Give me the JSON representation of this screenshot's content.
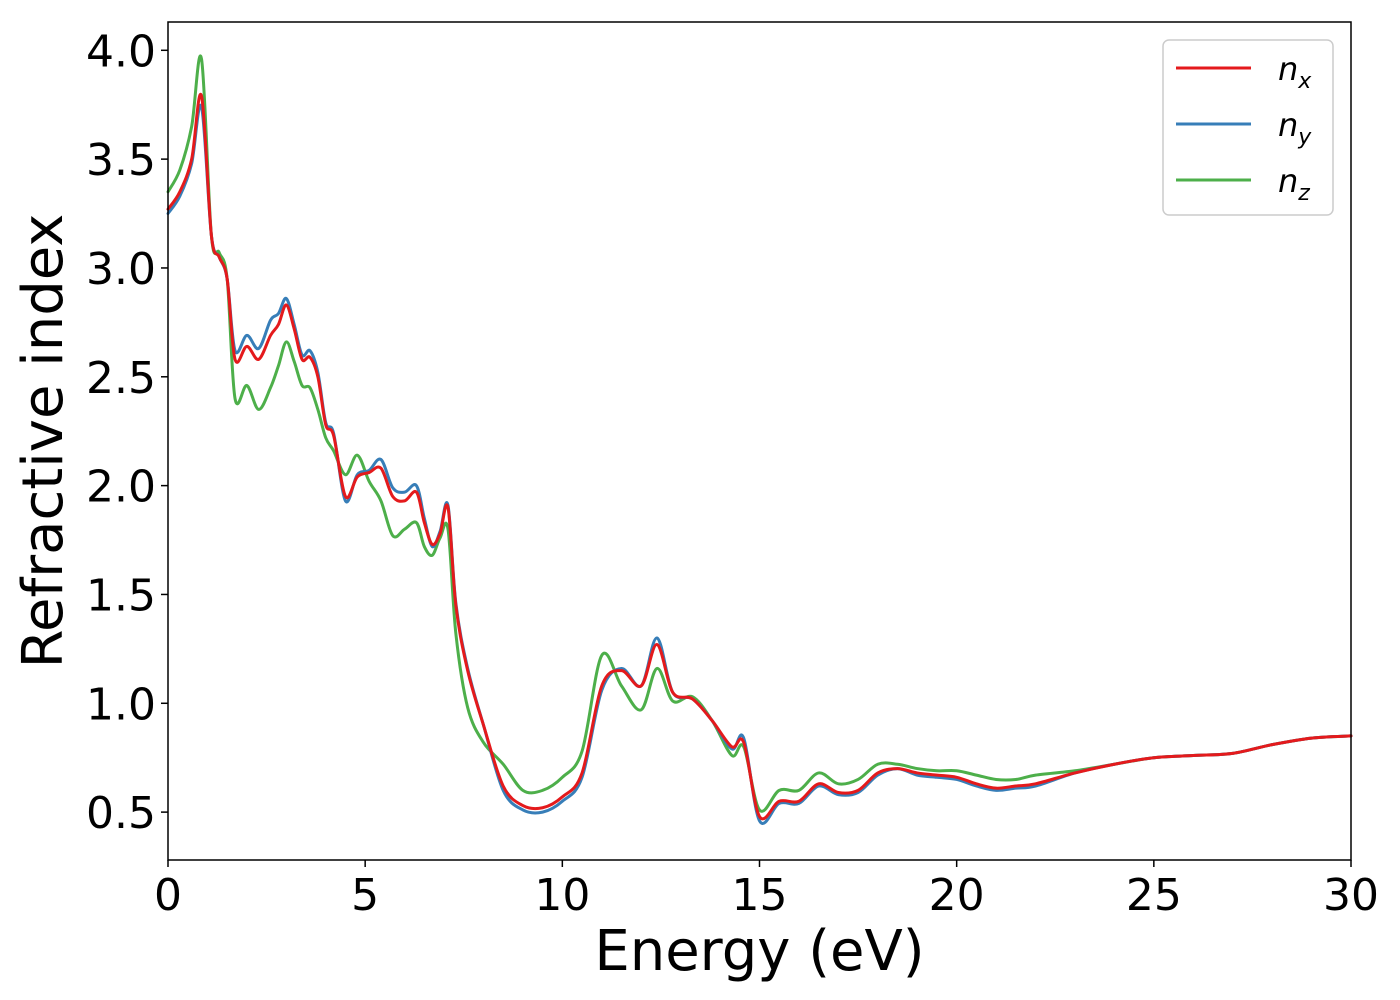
{
  "chart_data": {
    "type": "line",
    "title": "",
    "xlabel": "Energy (eV)",
    "ylabel": "Refractive index",
    "xlim": [
      0,
      30
    ],
    "ylim": [
      0.28,
      4.13
    ],
    "xticks": [
      0,
      5,
      10,
      15,
      20,
      25,
      30
    ],
    "xtick_labels": [
      "0",
      "5",
      "10",
      "15",
      "20",
      "25",
      "30"
    ],
    "yticks": [
      0.5,
      1.0,
      1.5,
      2.0,
      2.5,
      3.0,
      3.5,
      4.0
    ],
    "ytick_labels": [
      "0.5",
      "1.0",
      "1.5",
      "2.0",
      "2.5",
      "3.0",
      "3.5",
      "4.0"
    ],
    "grid": false,
    "legend_position": "top-right",
    "series": [
      {
        "name": "n",
        "subscript": "x",
        "color": "#e41a1c",
        "x": [
          0,
          0.3,
          0.6,
          0.85,
          1.1,
          1.3,
          1.5,
          1.7,
          2.0,
          2.3,
          2.6,
          2.8,
          3.0,
          3.2,
          3.4,
          3.6,
          3.8,
          4.0,
          4.2,
          4.5,
          4.8,
          5.1,
          5.4,
          5.7,
          6.0,
          6.3,
          6.5,
          6.7,
          6.9,
          7.1,
          7.3,
          7.6,
          8.0,
          8.5,
          9.0,
          9.5,
          10.0,
          10.5,
          11.0,
          11.5,
          12.0,
          12.4,
          12.8,
          13.3,
          13.8,
          14.3,
          14.6,
          15.0,
          15.5,
          16.0,
          16.5,
          17.0,
          17.5,
          18.0,
          18.5,
          19.0,
          19.5,
          20.0,
          20.5,
          21.0,
          21.5,
          22.0,
          23.0,
          24.0,
          25.0,
          26.0,
          27.0,
          28.0,
          29.0,
          30.0
        ],
        "y": [
          3.27,
          3.35,
          3.5,
          3.79,
          3.15,
          3.05,
          2.95,
          2.58,
          2.64,
          2.58,
          2.69,
          2.74,
          2.83,
          2.72,
          2.58,
          2.59,
          2.5,
          2.28,
          2.23,
          1.95,
          2.04,
          2.06,
          2.08,
          1.95,
          1.93,
          1.97,
          1.83,
          1.73,
          1.78,
          1.9,
          1.45,
          1.15,
          0.9,
          0.62,
          0.53,
          0.52,
          0.57,
          0.68,
          1.08,
          1.15,
          1.08,
          1.27,
          1.05,
          1.02,
          0.92,
          0.8,
          0.82,
          0.48,
          0.55,
          0.55,
          0.63,
          0.59,
          0.6,
          0.68,
          0.7,
          0.68,
          0.67,
          0.66,
          0.63,
          0.61,
          0.62,
          0.63,
          0.68,
          0.72,
          0.75,
          0.76,
          0.77,
          0.81,
          0.84,
          0.85
        ]
      },
      {
        "name": "n",
        "subscript": "y",
        "color": "#377eb8",
        "x": [
          0,
          0.3,
          0.6,
          0.85,
          1.1,
          1.3,
          1.5,
          1.7,
          2.0,
          2.3,
          2.6,
          2.8,
          3.0,
          3.2,
          3.4,
          3.6,
          3.8,
          4.0,
          4.2,
          4.5,
          4.8,
          5.1,
          5.4,
          5.7,
          6.0,
          6.3,
          6.5,
          6.7,
          6.9,
          7.1,
          7.3,
          7.6,
          8.0,
          8.5,
          9.0,
          9.5,
          10.0,
          10.5,
          11.0,
          11.5,
          12.0,
          12.4,
          12.8,
          13.3,
          13.8,
          14.3,
          14.6,
          15.0,
          15.5,
          16.0,
          16.5,
          17.0,
          17.5,
          18.0,
          18.5,
          19.0,
          19.5,
          20.0,
          20.5,
          21.0,
          21.5,
          22.0,
          23.0,
          24.0,
          25.0,
          26.0,
          27.0,
          28.0,
          29.0,
          30.0
        ],
        "y": [
          3.25,
          3.33,
          3.48,
          3.74,
          3.15,
          3.05,
          2.95,
          2.62,
          2.69,
          2.63,
          2.76,
          2.79,
          2.86,
          2.74,
          2.6,
          2.62,
          2.52,
          2.29,
          2.24,
          1.93,
          2.05,
          2.07,
          2.12,
          1.99,
          1.97,
          2.0,
          1.85,
          1.72,
          1.79,
          1.91,
          1.46,
          1.16,
          0.9,
          0.6,
          0.51,
          0.5,
          0.55,
          0.66,
          1.06,
          1.16,
          1.08,
          1.3,
          1.05,
          1.02,
          0.92,
          0.79,
          0.84,
          0.46,
          0.54,
          0.54,
          0.62,
          0.58,
          0.59,
          0.67,
          0.7,
          0.67,
          0.66,
          0.65,
          0.62,
          0.6,
          0.61,
          0.62,
          0.68,
          0.72,
          0.75,
          0.76,
          0.77,
          0.81,
          0.84,
          0.85
        ]
      },
      {
        "name": "n",
        "subscript": "z",
        "color": "#4daf4a",
        "x": [
          0,
          0.3,
          0.6,
          0.85,
          1.1,
          1.3,
          1.5,
          1.7,
          2.0,
          2.3,
          2.6,
          2.8,
          3.0,
          3.2,
          3.4,
          3.6,
          3.8,
          4.0,
          4.2,
          4.5,
          4.8,
          5.1,
          5.4,
          5.7,
          6.0,
          6.3,
          6.5,
          6.7,
          6.9,
          7.1,
          7.3,
          7.6,
          8.0,
          8.5,
          9.0,
          9.5,
          10.0,
          10.5,
          11.0,
          11.5,
          12.0,
          12.4,
          12.8,
          13.3,
          13.8,
          14.3,
          14.6,
          15.0,
          15.5,
          16.0,
          16.5,
          17.0,
          17.5,
          18.0,
          18.5,
          19.0,
          19.5,
          20.0,
          20.5,
          21.0,
          21.5,
          22.0,
          23.0,
          24.0,
          25.0,
          26.0,
          27.0,
          28.0,
          29.0,
          30.0
        ],
        "y": [
          3.35,
          3.45,
          3.65,
          3.96,
          3.15,
          3.07,
          2.95,
          2.4,
          2.46,
          2.35,
          2.45,
          2.55,
          2.66,
          2.57,
          2.46,
          2.45,
          2.35,
          2.22,
          2.16,
          2.05,
          2.14,
          2.02,
          1.93,
          1.77,
          1.8,
          1.83,
          1.72,
          1.68,
          1.76,
          1.8,
          1.32,
          0.98,
          0.82,
          0.72,
          0.6,
          0.6,
          0.66,
          0.78,
          1.22,
          1.08,
          0.97,
          1.16,
          1.01,
          1.03,
          0.92,
          0.76,
          0.8,
          0.51,
          0.6,
          0.6,
          0.68,
          0.63,
          0.65,
          0.72,
          0.72,
          0.7,
          0.69,
          0.69,
          0.67,
          0.65,
          0.65,
          0.67,
          0.69,
          0.72,
          0.75,
          0.76,
          0.77,
          0.81,
          0.84,
          0.85
        ]
      }
    ]
  }
}
